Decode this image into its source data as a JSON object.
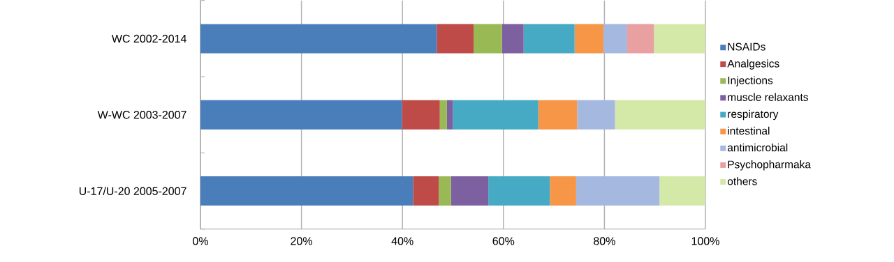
{
  "chart_data": {
    "type": "bar",
    "orientation": "horizontal",
    "stacked": true,
    "categories": [
      "WC 2002-2014",
      "W-WC 2003-2007",
      "U-17/U-20 2005-2007"
    ],
    "series": [
      {
        "name": "NSAIDs",
        "color": "#4a7ebb",
        "values": [
          46.8,
          39.9,
          42.1
        ]
      },
      {
        "name": "Analgesics",
        "color": "#be4b48",
        "values": [
          7.3,
          7.5,
          5.1
        ]
      },
      {
        "name": "Injections",
        "color": "#98b954",
        "values": [
          5.6,
          1.4,
          2.4
        ]
      },
      {
        "name": "muscle relaxants",
        "color": "#7d60a0",
        "values": [
          4.3,
          1.2,
          7.4
        ]
      },
      {
        "name": "respiratory",
        "color": "#46aac5",
        "values": [
          10.1,
          16.9,
          12.2
        ]
      },
      {
        "name": "intestinal",
        "color": "#f79646",
        "values": [
          5.7,
          7.7,
          5.2
        ]
      },
      {
        "name": "antimicrobial",
        "color": "#a5b8e0",
        "values": [
          4.7,
          7.5,
          16.5
        ]
      },
      {
        "name": "Psychopharmaka",
        "color": "#e8a0a0",
        "values": [
          5.3,
          0,
          0
        ]
      },
      {
        "name": "others",
        "color": "#d4e8a8",
        "values": [
          10.2,
          17.9,
          9.1
        ]
      }
    ],
    "xlim": [
      0,
      100
    ],
    "xticks": [
      {
        "value": 0,
        "label": "0%"
      },
      {
        "value": 20,
        "label": "20%"
      },
      {
        "value": 40,
        "label": "40%"
      },
      {
        "value": 60,
        "label": "60%"
      },
      {
        "value": 80,
        "label": "80%"
      },
      {
        "value": 100,
        "label": "100%"
      }
    ],
    "grid": "x",
    "legend": "right"
  }
}
